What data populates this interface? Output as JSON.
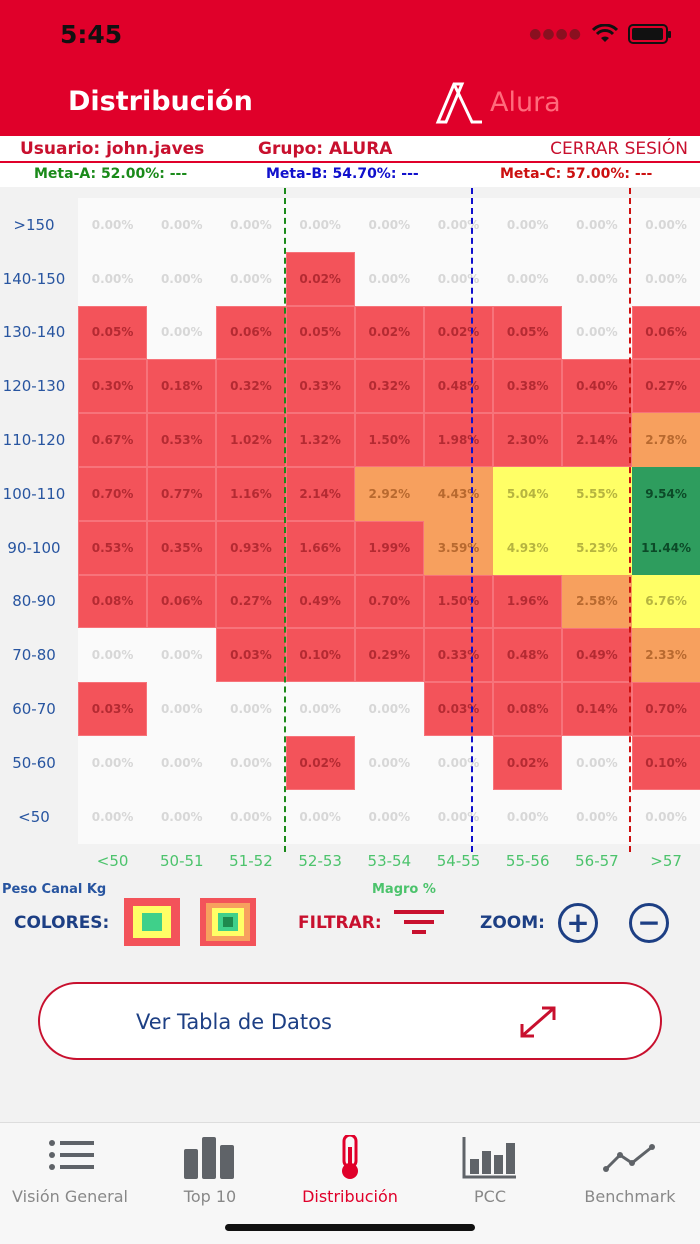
{
  "status": {
    "time": "5:45"
  },
  "header": {
    "title": "Distribución",
    "logo_text": "Alura"
  },
  "userbar": {
    "usuario": "Usuario: john.javes",
    "grupo": "Grupo: ALURA",
    "logout": "CERRAR SESIÓN"
  },
  "metas": {
    "a": "Meta-A: 52.00%: ---",
    "b": "Meta-B: 54.70%: ---",
    "c": "Meta-C: 57.00%: ---"
  },
  "heatmap": {
    "y_labels": [
      ">150",
      "140-150",
      "130-140",
      "120-130",
      "110-120",
      "100-110",
      "90-100",
      "80-90",
      "70-80",
      "60-70",
      "50-60",
      "<50"
    ],
    "x_labels": [
      "<50",
      "50-51",
      "51-52",
      "52-53",
      "53-54",
      "54-55",
      "55-56",
      "56-57",
      ">57"
    ],
    "y_axis_title": "Peso Canal Kg",
    "x_axis_title": "Magro %",
    "rows": [
      [
        "0.00%",
        "0.00%",
        "0.00%",
        "0.00%",
        "0.00%",
        "0.00%",
        "0.00%",
        "0.00%",
        "0.00%"
      ],
      [
        "0.00%",
        "0.00%",
        "0.00%",
        "0.02%",
        "0.00%",
        "0.00%",
        "0.00%",
        "0.00%",
        "0.00%"
      ],
      [
        "0.05%",
        "0.00%",
        "0.06%",
        "0.05%",
        "0.02%",
        "0.02%",
        "0.05%",
        "0.00%",
        "0.06%"
      ],
      [
        "0.30%",
        "0.18%",
        "0.32%",
        "0.33%",
        "0.32%",
        "0.48%",
        "0.38%",
        "0.40%",
        "0.27%"
      ],
      [
        "0.67%",
        "0.53%",
        "1.02%",
        "1.32%",
        "1.50%",
        "1.98%",
        "2.30%",
        "2.14%",
        "2.78%"
      ],
      [
        "0.70%",
        "0.77%",
        "1.16%",
        "2.14%",
        "2.92%",
        "4.43%",
        "5.04%",
        "5.55%",
        "9.54%"
      ],
      [
        "0.53%",
        "0.35%",
        "0.93%",
        "1.66%",
        "1.99%",
        "3.59%",
        "4.93%",
        "5.23%",
        "11.44%"
      ],
      [
        "0.08%",
        "0.06%",
        "0.27%",
        "0.49%",
        "0.70%",
        "1.50%",
        "1.96%",
        "2.58%",
        "6.76%"
      ],
      [
        "0.00%",
        "0.00%",
        "0.03%",
        "0.10%",
        "0.29%",
        "0.33%",
        "0.48%",
        "0.49%",
        "2.33%"
      ],
      [
        "0.03%",
        "0.00%",
        "0.00%",
        "0.00%",
        "0.00%",
        "0.03%",
        "0.08%",
        "0.14%",
        "0.70%"
      ],
      [
        "0.00%",
        "0.00%",
        "0.00%",
        "0.02%",
        "0.00%",
        "0.00%",
        "0.02%",
        "0.00%",
        "0.10%"
      ],
      [
        "0.00%",
        "0.00%",
        "0.00%",
        "0.00%",
        "0.00%",
        "0.00%",
        "0.00%",
        "0.00%",
        "0.00%"
      ]
    ],
    "colors": {
      "red": "#f3535a",
      "orange": "#f7a05e",
      "yellow": "#ffff66",
      "green": "#3fb070",
      "empty": "#fafafa"
    },
    "meta_colors": {
      "a": "#1a8a1a",
      "b": "#1010cc",
      "c": "#cc1010"
    }
  },
  "controls": {
    "colores": "COLORES:",
    "filtrar": "FILTRAR:",
    "zoom": "ZOOM:",
    "zoom_in": "+",
    "zoom_out": "−"
  },
  "ver_tabla": {
    "label": "Ver Tabla de Datos"
  },
  "tabs": [
    {
      "label": "Visión General",
      "icon": "list-icon"
    },
    {
      "label": "Top 10",
      "icon": "bars-icon"
    },
    {
      "label": "Distribución",
      "icon": "thermometer-icon",
      "active": true
    },
    {
      "label": "PCC",
      "icon": "bar-chart-icon"
    },
    {
      "label": "Benchmark",
      "icon": "line-chart-icon"
    }
  ]
}
